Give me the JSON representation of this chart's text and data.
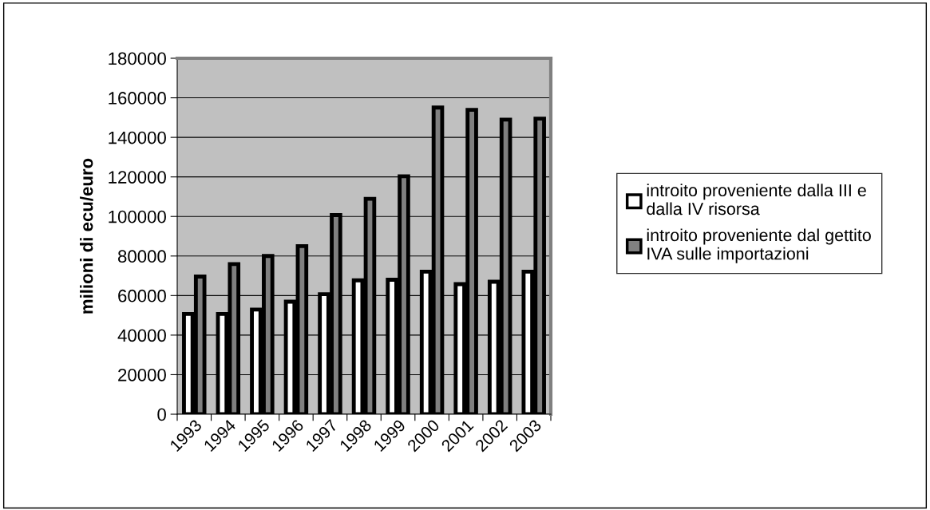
{
  "chart_data": {
    "type": "bar",
    "ylabel": "milioni di ecu/euro",
    "categories": [
      "1993",
      "1994",
      "1995",
      "1996",
      "1997",
      "1998",
      "1999",
      "2000",
      "2001",
      "2002",
      "2003"
    ],
    "series": [
      {
        "name": "introito proveniente dalla III e dalla IV risorsa",
        "color": "#ffffff",
        "values": [
          50700,
          50700,
          52900,
          56900,
          60700,
          67700,
          68000,
          72100,
          65800,
          67000,
          72100
        ]
      },
      {
        "name": "introito proveniente dal gettito IVA sulle importazioni",
        "color": "#808080",
        "values": [
          69600,
          75900,
          80000,
          85000,
          100700,
          108900,
          120300,
          155100,
          153900,
          149000,
          149500
        ]
      }
    ],
    "ylim": [
      0,
      180000
    ],
    "yticks": [
      0,
      20000,
      40000,
      60000,
      80000,
      100000,
      120000,
      140000,
      160000,
      180000
    ],
    "grid": "y",
    "legend": "right"
  }
}
